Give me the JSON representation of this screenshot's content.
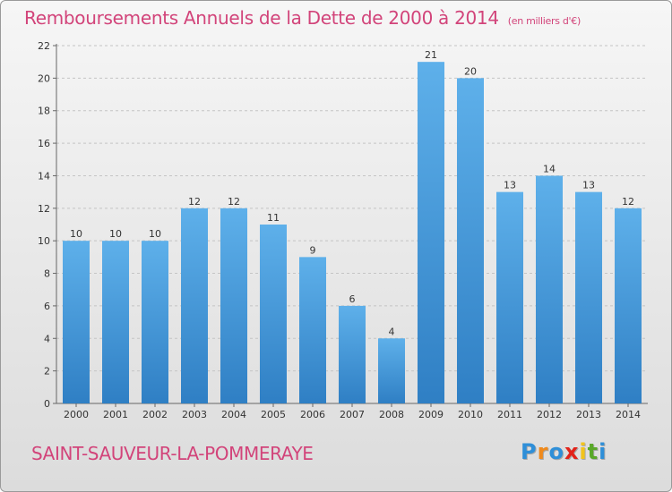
{
  "title": "Remboursements Annuels de la Dette de 2000 à 2014",
  "unit_note": "(en milliers d'€)",
  "commune": "SAINT-SAUVEUR-LA-POMMERAYE",
  "logo": {
    "letters": [
      "P",
      "r",
      "o",
      "x",
      "i",
      "t",
      "i"
    ],
    "colors": [
      "#2f8fd8",
      "#f08a1c",
      "#2f8fd8",
      "#e2231a",
      "#f2c31b",
      "#5aa829",
      "#2f8fd8"
    ]
  },
  "chart_data": {
    "type": "bar",
    "title": "Remboursements Annuels de la Dette de 2000 à 2014",
    "categories": [
      "2000",
      "2001",
      "2002",
      "2003",
      "2004",
      "2005",
      "2006",
      "2007",
      "2008",
      "2009",
      "2010",
      "2011",
      "2012",
      "2013",
      "2014"
    ],
    "values": [
      10,
      10,
      10,
      12,
      12,
      11,
      9,
      6,
      4,
      21,
      20,
      13,
      14,
      13,
      12
    ],
    "data_labels": [
      "10",
      "10",
      "10",
      "12",
      "12",
      "11",
      "9",
      "6",
      "4",
      "21",
      "20",
      "13",
      "14",
      "13",
      "12"
    ],
    "y_ticks": [
      "0",
      "2",
      "4",
      "6",
      "8",
      "10",
      "12",
      "14",
      "16",
      "18",
      "20",
      "22"
    ],
    "ylim": [
      0,
      22
    ],
    "grid": "horizontal dashed",
    "bar_color": "#4a9ee0"
  }
}
